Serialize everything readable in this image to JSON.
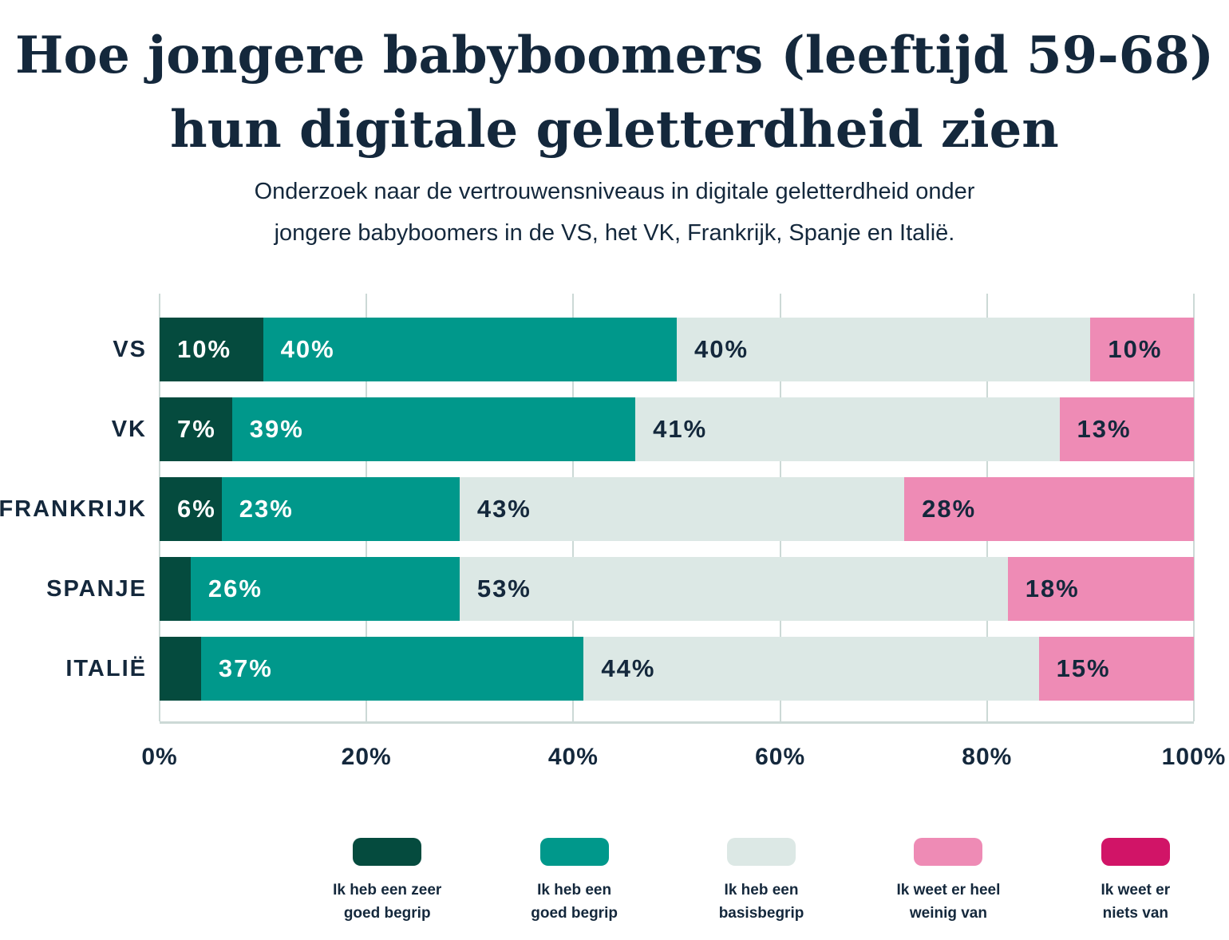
{
  "header": {
    "title_line1": "Hoe jongere babyboomers (leeftijd 59-68)",
    "title_line2": "hun digitale geletterdheid zien",
    "subtitle_line1": "Onderzoek naar de vertrouwensniveaus in digitale geletterdheid onder",
    "subtitle_line2": "jongere babyboomers in de VS, het VK, Frankrijk, Spanje en Italië."
  },
  "colors": {
    "text_navy": "#14283C",
    "gridline": "#CCD9D6",
    "very_good": "#054B3E",
    "good": "#00988B",
    "basic": "#DCE8E5",
    "little": "#EE8BB5",
    "none": "#D11467"
  },
  "chart_data": {
    "type": "bar",
    "subtype": "horizontal-stacked-percentage",
    "categories": [
      "VS",
      "VK",
      "FRANKRIJK",
      "SPANJE",
      "ITALIË"
    ],
    "series": [
      {
        "name": "Ik heb een zeer goed begrip",
        "color": "#054B3E",
        "label_color": "#FFFFFF",
        "values": [
          10,
          7,
          6,
          3,
          4
        ]
      },
      {
        "name": "Ik heb een goed begrip",
        "color": "#00988B",
        "label_color": "#FFFFFF",
        "values": [
          40,
          39,
          23,
          26,
          37
        ]
      },
      {
        "name": "Ik heb een basisbegrip",
        "color": "#DCE8E5",
        "label_color": "#14283C",
        "values": [
          40,
          41,
          43,
          53,
          44
        ]
      },
      {
        "name": "Ik weet er heel weinig van",
        "color": "#EE8BB5",
        "label_color": "#14283C",
        "values": [
          10,
          13,
          28,
          18,
          15
        ]
      },
      {
        "name": "Ik weet er niets van",
        "color": "#D11467",
        "label_color": "#14283C",
        "values": [
          0,
          0,
          0,
          0,
          0
        ]
      }
    ],
    "value_label_format": "{v}%",
    "label_min_pct": 5,
    "x_ticks": [
      "0%",
      "20%",
      "40%",
      "60%",
      "80%",
      "100%"
    ],
    "xlim": [
      0,
      100
    ],
    "grid": true,
    "legend_position": "bottom"
  },
  "legend": {
    "items": [
      {
        "lines": [
          "Ik heb een zeer",
          "goed begrip"
        ],
        "color": "#054B3E"
      },
      {
        "lines": [
          "Ik heb een",
          "goed begrip"
        ],
        "color": "#00988B"
      },
      {
        "lines": [
          "Ik heb een",
          "basisbegrip"
        ],
        "color": "#DCE8E5"
      },
      {
        "lines": [
          "Ik weet er heel",
          "weinig van"
        ],
        "color": "#EE8BB5"
      },
      {
        "lines": [
          "Ik weet er",
          "niets van"
        ],
        "color": "#D11467"
      }
    ]
  }
}
